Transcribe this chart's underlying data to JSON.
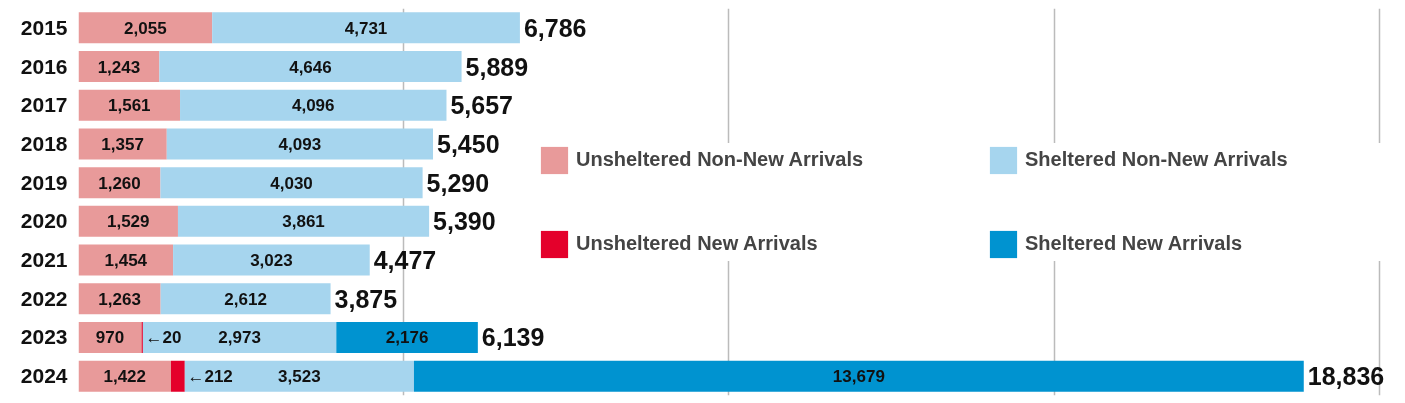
{
  "chart_data": {
    "type": "bar",
    "orientation": "horizontal",
    "stacked": true,
    "categories": [
      "2015",
      "2016",
      "2017",
      "2018",
      "2019",
      "2020",
      "2021",
      "2022",
      "2023",
      "2024"
    ],
    "series": [
      {
        "name": "Unsheltered Non-New Arrivals",
        "color": "#e89a9a",
        "values": [
          2055,
          1243,
          1561,
          1357,
          1260,
          1529,
          1454,
          1263,
          970,
          1422
        ],
        "value_labels": [
          "2,055",
          "1,243",
          "1,561",
          "1,357",
          "1,260",
          "1,529",
          "1,454",
          "1,263",
          "970",
          "1,422"
        ]
      },
      {
        "name": "Unsheltered New Arrivals",
        "color": "#e4002b",
        "values": [
          null,
          null,
          null,
          null,
          null,
          null,
          null,
          null,
          20,
          212
        ],
        "value_labels": [
          null,
          null,
          null,
          null,
          null,
          null,
          null,
          null,
          "←20",
          "←212"
        ]
      },
      {
        "name": "Sheltered Non-New Arrivals",
        "color": "#a6d5ee",
        "values": [
          4731,
          4646,
          4096,
          4093,
          4030,
          3861,
          3023,
          2612,
          2973,
          3523
        ],
        "value_labels": [
          "4,731",
          "4,646",
          "4,096",
          "4,093",
          "4,030",
          "3,861",
          "3,023",
          "2,612",
          "2,973",
          "3,523"
        ]
      },
      {
        "name": "Sheltered New Arrivals",
        "color": "#0093d0",
        "values": [
          null,
          null,
          null,
          null,
          null,
          null,
          null,
          null,
          2176,
          13679
        ],
        "value_labels": [
          null,
          null,
          null,
          null,
          null,
          null,
          null,
          null,
          "2,176",
          "13,679"
        ]
      }
    ],
    "totals": [
      "6,786",
      "5,889",
      "5,657",
      "5,450",
      "5,290",
      "5,390",
      "4,477",
      "3,875",
      "6,139",
      "18,836"
    ],
    "xticks": [
      {
        "value": 5000,
        "label": null
      },
      {
        "value": 10000,
        "label": null
      },
      {
        "value": 15000,
        "label": null
      },
      {
        "value": 20000,
        "label": null
      }
    ],
    "tick_labels": "y",
    "grid": "x",
    "legend": "right"
  }
}
